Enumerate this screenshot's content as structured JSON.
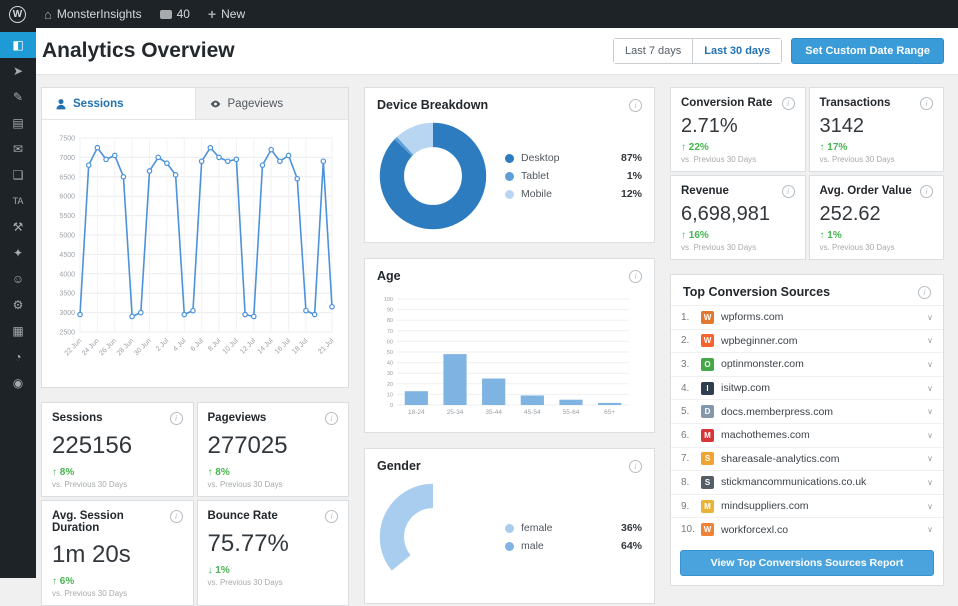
{
  "admin_bar": {
    "wp_logo": "W",
    "site_name": "MonsterInsights",
    "comments_count": "40",
    "new_label": "New"
  },
  "icons": {
    "info": "i",
    "chevron_down": "∨",
    "arrow_up": "↑",
    "arrow_down": "↓",
    "home": "⌂",
    "plus": "+"
  },
  "theme": {
    "accent_blue": "#3a9bd9",
    "active_blue": "#2271b1",
    "positive_green": "#46b450",
    "sidebar_highlight": "#1e9bd4"
  },
  "sidebar": {
    "items": [
      {
        "name": "monsterinsights",
        "glyph": "◧",
        "active": true
      },
      {
        "name": "pin",
        "glyph": "➤",
        "active": false
      },
      {
        "name": "posts",
        "glyph": "✎",
        "active": false
      },
      {
        "name": "media",
        "glyph": "▤",
        "active": false
      },
      {
        "name": "comments",
        "glyph": "✉",
        "active": false
      },
      {
        "name": "screen",
        "glyph": "❑",
        "active": false
      },
      {
        "name": "ta",
        "glyph": "TA",
        "active": false
      },
      {
        "name": "tools",
        "glyph": "⚒",
        "active": false
      },
      {
        "name": "plugins",
        "glyph": "✦",
        "active": false
      },
      {
        "name": "users",
        "glyph": "☺",
        "active": false
      },
      {
        "name": "wrench",
        "glyph": "⚙",
        "active": false
      },
      {
        "name": "grid",
        "glyph": "▦",
        "active": false
      },
      {
        "name": "reports",
        "glyph": "◔",
        "active": false
      },
      {
        "name": "collapse",
        "glyph": "◉",
        "active": false
      }
    ]
  },
  "page": {
    "title": "Analytics Overview",
    "buttons": {
      "last7": "Last 7 days",
      "last30": "Last 30 days",
      "custom_range": "Set Custom Date Range"
    }
  },
  "tabs": {
    "sessions": "Sessions",
    "pageviews": "Pageviews"
  },
  "chart_data": [
    {
      "id": "sessions_trend",
      "type": "line",
      "title": "Sessions",
      "x": [
        "22 Jun",
        "23 Jun",
        "24 Jun",
        "25 Jun",
        "26 Jun",
        "27 Jun",
        "28 Jun",
        "29 Jun",
        "30 Jun",
        "1 Jul",
        "2 Jul",
        "3 Jul",
        "4 Jul",
        "5 Jul",
        "6 Jul",
        "7 Jul",
        "8 Jul",
        "9 Jul",
        "10 Jul",
        "11 Jul",
        "12 Jul",
        "13 Jul",
        "14 Jul",
        "15 Jul",
        "16 Jul",
        "17 Jul",
        "18 Jul",
        "19 Jul",
        "20 Jul",
        "21 Jul"
      ],
      "values": [
        2950,
        6800,
        7250,
        6950,
        7050,
        6500,
        2900,
        3000,
        6650,
        7000,
        6850,
        6550,
        2950,
        3050,
        6900,
        7250,
        7000,
        6900,
        6950,
        2950,
        2900,
        6800,
        7200,
        6900,
        7050,
        6450,
        3050,
        2950,
        6900,
        3150
      ],
      "xticks": [
        "22 Jun",
        "24 Jun",
        "26 Jun",
        "28 Jun",
        "30 Jun",
        "2 Jul",
        "4 Jul",
        "6 Jul",
        "8 Jul",
        "10 Jul",
        "12 Jul",
        "14 Jul",
        "16 Jul",
        "18 Jul",
        "21 Jul"
      ],
      "ylim": [
        2500,
        7500
      ],
      "ytick_step": 500,
      "grid": true,
      "line_color": "#4b92db"
    },
    {
      "id": "device_breakdown",
      "type": "pie",
      "title": "Device Breakdown",
      "labels": [
        "Desktop",
        "Tablet",
        "Mobile"
      ],
      "values": [
        87,
        1,
        12
      ],
      "colors": [
        "#2e7cc0",
        "#5e9fd8",
        "#b8d6f2"
      ],
      "start_fraction": 0,
      "legend_position": "right"
    },
    {
      "id": "age",
      "type": "bar",
      "title": "Age",
      "categories": [
        "18-24",
        "25-34",
        "35-44",
        "45-54",
        "55-64",
        "65+"
      ],
      "values": [
        13,
        48,
        25,
        9,
        5,
        2
      ],
      "ylim": [
        0,
        100
      ],
      "ytick_step": 10,
      "grid": true,
      "bar_color": "#7fb3e2"
    },
    {
      "id": "gender",
      "type": "pie",
      "title": "Gender",
      "labels": [
        "female",
        "male"
      ],
      "values": [
        36,
        64
      ],
      "colors": [
        "#a8cdef",
        "#7fb3e6"
      ],
      "start_fraction": 0.64,
      "legend_position": "right"
    }
  ],
  "stats": {
    "compare_label": "vs. Previous 30 Days",
    "left": [
      {
        "label": "Sessions",
        "value": "225156",
        "change": "8%",
        "direction": "up"
      },
      {
        "label": "Pageviews",
        "value": "277025",
        "change": "8%",
        "direction": "up"
      },
      {
        "label": "Avg. Session Duration",
        "value": "1m 20s",
        "change": "6%",
        "direction": "up"
      },
      {
        "label": "Bounce Rate",
        "value": "75.77%",
        "change": "1%",
        "direction": "down"
      }
    ],
    "right": [
      {
        "label": "Conversion Rate",
        "value": "2.71%",
        "change": "22%",
        "direction": "up"
      },
      {
        "label": "Transactions",
        "value": "3142",
        "change": "17%",
        "direction": "up"
      },
      {
        "label": "Revenue",
        "value": "6,698,981",
        "change": "16%",
        "direction": "up"
      },
      {
        "label": "Avg. Order Value",
        "value": "252.62",
        "change": "1%",
        "direction": "up"
      }
    ]
  },
  "sources": {
    "title": "Top Conversion Sources",
    "items": [
      {
        "rank": "1.",
        "domain": "wpforms.com",
        "color": "#e27730"
      },
      {
        "rank": "2.",
        "domain": "wpbeginner.com",
        "color": "#f4642c"
      },
      {
        "rank": "3.",
        "domain": "optinmonster.com",
        "color": "#45a847"
      },
      {
        "rank": "4.",
        "domain": "isitwp.com",
        "color": "#2d3e50"
      },
      {
        "rank": "5.",
        "domain": "docs.memberpress.com",
        "color": "#8598ab"
      },
      {
        "rank": "6.",
        "domain": "machothemes.com",
        "color": "#d63638"
      },
      {
        "rank": "7.",
        "domain": "shareasale-analytics.com",
        "color": "#f0a330"
      },
      {
        "rank": "8.",
        "domain": "stickmancommunications.co.uk",
        "color": "#555d66"
      },
      {
        "rank": "9.",
        "domain": "mindsuppliers.com",
        "color": "#e8b339"
      },
      {
        "rank": "10.",
        "domain": "workforcexl.co",
        "color": "#ef8236"
      }
    ],
    "report_button": "View Top Conversions Sources Report"
  }
}
